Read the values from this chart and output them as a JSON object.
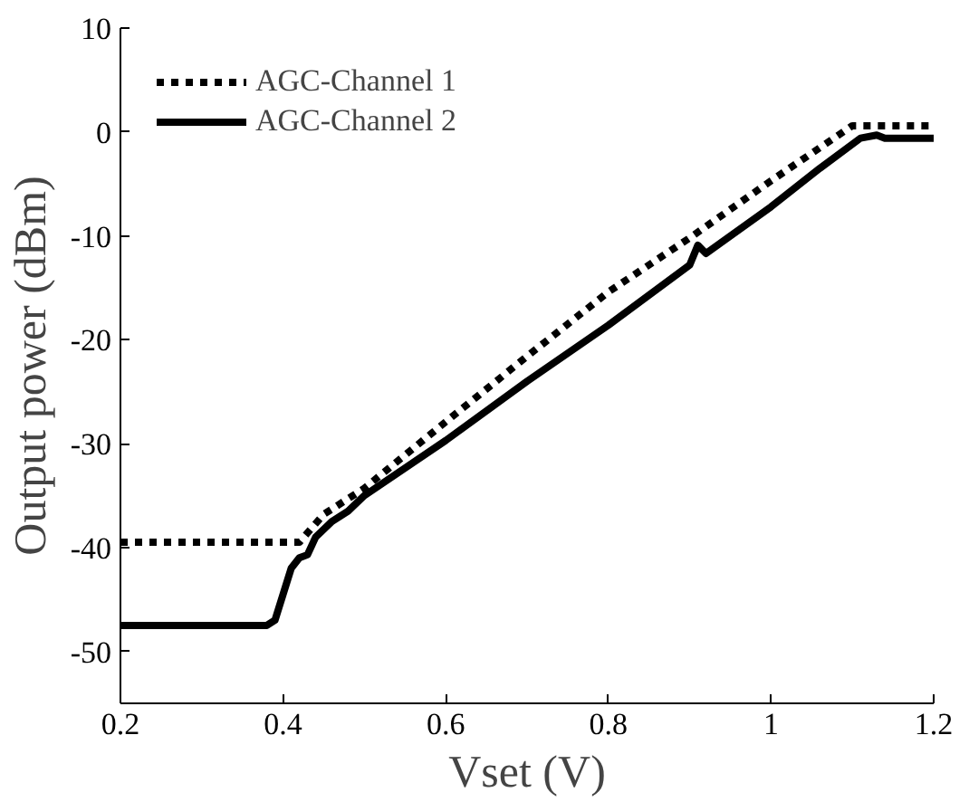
{
  "chart_data": {
    "type": "line",
    "xlabel": "Vset (V)",
    "ylabel": "Output power (dBm)",
    "xlim": [
      0.2,
      1.2
    ],
    "ylim": [
      -55,
      10
    ],
    "xticks": [
      0.2,
      0.4,
      0.6,
      0.8,
      1,
      1.2
    ],
    "yticks": [
      -50,
      -40,
      -30,
      -20,
      -10,
      0,
      10
    ],
    "grid": false,
    "legend": "top left",
    "marker": "none",
    "series": [
      {
        "name": "AGC-Channel 1",
        "color": "#000000",
        "line_style": "dotted",
        "x": [
          0.2,
          0.42,
          0.45,
          0.5,
          0.6,
          0.7,
          0.8,
          0.9,
          1.0,
          1.1,
          1.2
        ],
        "values": [
          -39.5,
          -39.5,
          -36.8,
          -34.3,
          -27.9,
          -21.6,
          -15.4,
          -10.2,
          -4.7,
          0.6,
          0.6
        ]
      },
      {
        "name": "AGC-Channel 2",
        "color": "#000000",
        "line_style": "solid",
        "x": [
          0.2,
          0.38,
          0.39,
          0.4,
          0.41,
          0.42,
          0.43,
          0.44,
          0.46,
          0.48,
          0.5,
          0.6,
          0.7,
          0.8,
          0.9,
          0.91,
          0.92,
          1.0,
          1.06,
          1.11,
          1.13,
          1.14,
          1.2
        ],
        "values": [
          -47.5,
          -47.5,
          -47,
          -44.5,
          -42,
          -41,
          -40.7,
          -39,
          -37.5,
          -36.5,
          -35,
          -29.7,
          -24,
          -18.6,
          -12.8,
          -10.9,
          -11.7,
          -7.2,
          -3.5,
          -0.6,
          -0.3,
          -0.6,
          -0.6
        ]
      }
    ]
  }
}
